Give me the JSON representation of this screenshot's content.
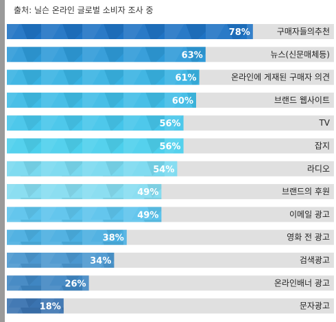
{
  "source_text": "출처: 닐슨 온라인 글로벌 소비자 조사 중",
  "colors": {
    "track": "#e0e0e0",
    "label_text": "#222222",
    "value_text": "#ffffff",
    "side_bar": "#9a9a9a"
  },
  "chart_data": {
    "type": "bar",
    "orientation": "horizontal",
    "title": "",
    "xlabel": "",
    "ylabel": "",
    "xlim": [
      0,
      100
    ],
    "categories": [
      "구매자들의추천",
      "뉴스(신문매체등)",
      "온라인에 게재된 구매자 의견",
      "브랜드 웹사이트",
      "TV",
      "잡지",
      "라디오",
      "브랜드의 후원",
      "이메일 광고",
      "영화 전 광고",
      "검색광고",
      "온라인배너 광고",
      "문자광고"
    ],
    "values": [
      78,
      63,
      61,
      60,
      56,
      56,
      54,
      49,
      49,
      38,
      34,
      26,
      18
    ],
    "value_labels": [
      "78%",
      "63%",
      "61%",
      "60%",
      "56%",
      "56%",
      "54%",
      "49%",
      "49%",
      "38%",
      "34%",
      "26%",
      "18%"
    ],
    "bar_colors": [
      "#1f73c4",
      "#2e9ad8",
      "#38b2e2",
      "#3fbce6",
      "#45c5ea",
      "#4ccfec",
      "#79d9ef",
      "#86dcf0",
      "#5cc3ec",
      "#4aaee0",
      "#4b97cf",
      "#3f86c2",
      "#3a73b0"
    ],
    "grid": false,
    "legend": "none"
  }
}
